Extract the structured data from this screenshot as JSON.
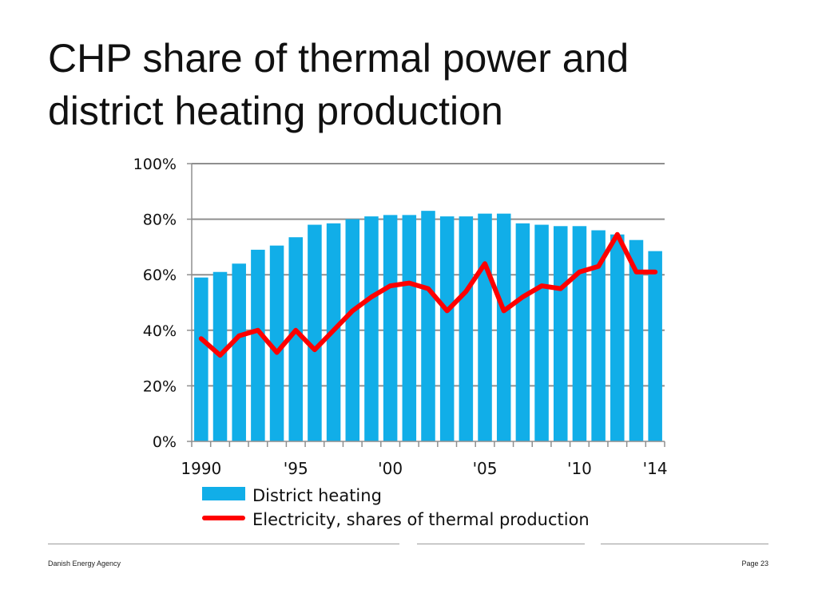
{
  "title": {
    "line1": "CHP share of thermal power and",
    "line2": "district heating production"
  },
  "chart_data": {
    "type": "bar",
    "x": [
      1990,
      1991,
      1992,
      1993,
      1994,
      1995,
      1996,
      1997,
      1998,
      1999,
      2000,
      2001,
      2002,
      2003,
      2004,
      2005,
      2006,
      2007,
      2008,
      2009,
      2010,
      2011,
      2012,
      2013,
      2014
    ],
    "series": [
      {
        "name": "District heating",
        "type": "bar",
        "color": "#11aee8",
        "values": [
          59,
          61,
          64,
          69,
          70.5,
          73.5,
          78,
          78.5,
          80,
          81,
          81.5,
          81.5,
          83,
          81,
          81,
          82,
          82,
          78.5,
          78,
          77.5,
          77.5,
          76,
          74.5,
          72.5,
          68.5
        ]
      },
      {
        "name": "Electricity, shares of thermal production",
        "type": "line",
        "color": "#ff0000",
        "values": [
          37,
          31,
          38,
          40,
          32,
          40,
          33,
          40,
          47,
          52,
          56,
          57,
          55,
          47,
          54,
          64,
          47,
          52,
          56,
          55,
          61,
          63,
          74.5,
          61,
          61
        ]
      }
    ],
    "ylim": [
      0,
      100
    ],
    "yticks": [
      0,
      20,
      40,
      60,
      80,
      100
    ],
    "ytick_labels": [
      "0%",
      "20%",
      "40%",
      "60%",
      "80%",
      "100%"
    ],
    "xtick_years": [
      1990,
      1995,
      2000,
      2005,
      2010,
      2014
    ],
    "xtick_labels": [
      "1990",
      "'95",
      "'00",
      "'05",
      "'10",
      "'14"
    ],
    "grid": true,
    "legend_position": "bottom"
  },
  "footer": {
    "left": "Danish Energy Agency",
    "right": "Page 23"
  }
}
